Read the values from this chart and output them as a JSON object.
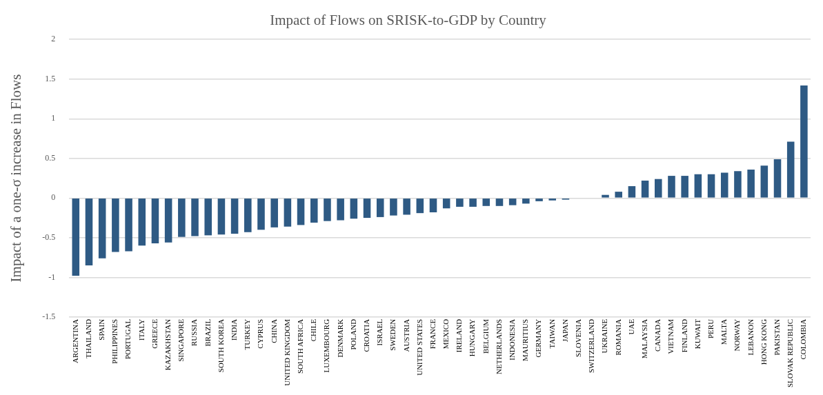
{
  "chart_data": {
    "type": "bar",
    "title": "Impact of Flows on SRISK-to-GDP by Country",
    "ylabel": "Impact of a one-σ increase in Flows",
    "categories": [
      "ARGENTINA",
      "THAILAND",
      "SPAIN",
      "PHILIPPINES",
      "PORTUGAL",
      "ITALY",
      "GREECE",
      "KAZAKHSTAN",
      "SINGAPORE",
      "RUSSIA",
      "BRAZIL",
      "SOUTH KOREA",
      "INDIA",
      "TURKEY",
      "CYPRUS",
      "CHINA",
      "UNITED KINGDOM",
      "SOUTH AFRICA",
      "CHILE",
      "LUXEMBOURG",
      "DENMARK",
      "POLAND",
      "CROATIA",
      "ISRAEL",
      "SWEDEN",
      "AUSTRIA",
      "UNITED STATES",
      "FRANCE",
      "MEXICO",
      "IRELAND",
      "HUNGARY",
      "BELGIUM",
      "NETHERLANDS",
      "INDONESIA",
      "MAURITIUS",
      "GERMANY",
      "TAIWAN",
      "JAPAN",
      "SLOVENIA",
      "SWITZERLAND",
      "UKRAINE",
      "ROMANIA",
      "UAE",
      "MALAYSIA",
      "CANADA",
      "VIETNAM",
      "FINLAND",
      "KUWAIT",
      "PERU",
      "MALTA",
      "NORWAY",
      "LEBANON",
      "HONG KONG",
      "PAKISTAN",
      "SLOVAK REPUBLIC",
      "COLOMBIA"
    ],
    "values": [
      -0.98,
      -0.85,
      -0.76,
      -0.68,
      -0.67,
      -0.6,
      -0.57,
      -0.56,
      -0.49,
      -0.48,
      -0.47,
      -0.46,
      -0.45,
      -0.43,
      -0.4,
      -0.37,
      -0.36,
      -0.34,
      -0.31,
      -0.29,
      -0.28,
      -0.26,
      -0.25,
      -0.24,
      -0.22,
      -0.21,
      -0.19,
      -0.18,
      -0.13,
      -0.11,
      -0.11,
      -0.1,
      -0.1,
      -0.09,
      -0.07,
      -0.04,
      -0.03,
      -0.02,
      0,
      0,
      0.04,
      0.08,
      0.15,
      0.22,
      0.24,
      0.28,
      0.28,
      0.3,
      0.3,
      0.32,
      0.34,
      0.36,
      0.41,
      0.49,
      0.71,
      1.42
    ],
    "color": "#2e5a84",
    "ylim": [
      -1.5,
      2
    ],
    "yticks": [
      -1.5,
      -1,
      -0.5,
      0,
      0.5,
      1,
      1.5,
      2
    ],
    "grid": "y",
    "legend": false
  }
}
